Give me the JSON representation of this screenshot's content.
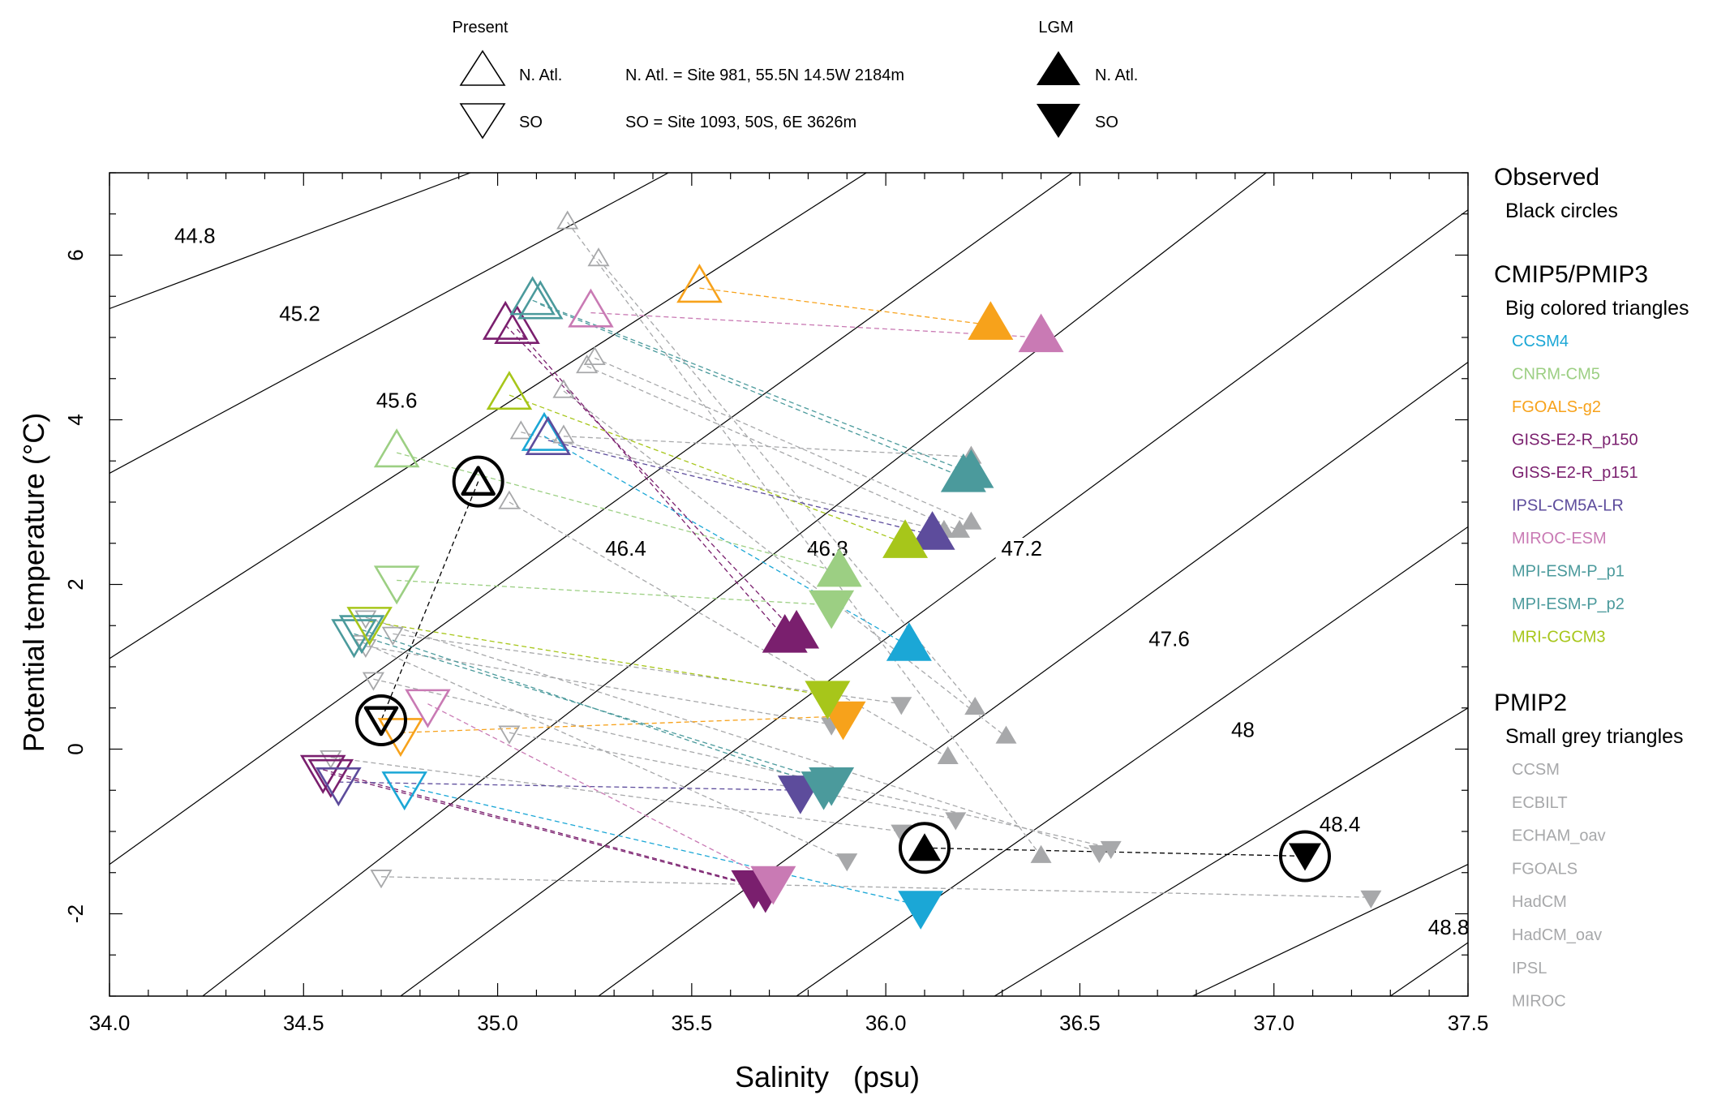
{
  "legend_top": {
    "present_title": "Present",
    "lgm_title": "LGM",
    "natl_label": "N. Atl.",
    "so_label": "SO",
    "natl_site": "N. Atl. = Site 981, 55.5N 14.5W 2184m",
    "so_site": "SO = Site 1093, 50S, 6E 3626m"
  },
  "side_legend": {
    "observed_title": "Observed",
    "observed_desc": "Black circles",
    "cmip_title": "CMIP5/PMIP3",
    "cmip_desc": "Big colored triangles",
    "cmip_models": [
      {
        "name": "CCSM4",
        "color": "#1ba7d6"
      },
      {
        "name": "CNRM-CM5",
        "color": "#9ccf83"
      },
      {
        "name": "FGOALS-g2",
        "color": "#f7a21b"
      },
      {
        "name": "GISS-E2-R_p150",
        "color": "#7a1f6e"
      },
      {
        "name": "GISS-E2-R_p151",
        "color": "#7a1f6e"
      },
      {
        "name": "IPSL-CM5A-LR",
        "color": "#5d4c9c"
      },
      {
        "name": "MIROC-ESM",
        "color": "#c97ab4"
      },
      {
        "name": "MPI-ESM-P_p1",
        "color": "#4b9a9c"
      },
      {
        "name": "MPI-ESM-P_p2",
        "color": "#4b9a9c"
      },
      {
        "name": "MRI-CGCM3",
        "color": "#a7c61a"
      }
    ],
    "pmip2_title": "PMIP2",
    "pmip2_desc": "Small grey triangles",
    "pmip2_models": [
      "CCSM",
      "ECBILT",
      "ECHAM_oav",
      "FGOALS",
      "HadCM",
      "HadCM_oav",
      "IPSL",
      "MIROC"
    ],
    "pmip2_color": "#a7a8aa"
  },
  "chart_data": {
    "type": "scatter",
    "xlabel": "Salinity   (psu)",
    "ylabel": "Potential temperature (°C)",
    "xlim": [
      34.0,
      37.5
    ],
    "ylim": [
      -3,
      7
    ],
    "xticks": [
      "34.0",
      "34.5",
      "35.0",
      "35.5",
      "36.0",
      "36.5",
      "37.0",
      "37.5"
    ],
    "yticks": [
      "-2",
      "0",
      "2",
      "4",
      "6"
    ],
    "isopycnals": [
      {
        "label": "44.8",
        "x0": 34.0,
        "y0": 5.35,
        "x1": 34.93,
        "y1": 7.0
      },
      {
        "label": "45.2",
        "x0": 34.0,
        "y0": 3.35,
        "x1": 35.44,
        "y1": 7.0
      },
      {
        "label": "45.6",
        "x0": 34.0,
        "y0": 1.1,
        "x1": 35.95,
        "y1": 7.0
      },
      {
        "label": "",
        "x0": 34.0,
        "y0": -1.4,
        "x1": 36.48,
        "y1": 7.0
      },
      {
        "label": "46.4",
        "x0": 34.24,
        "y0": -3.0,
        "x1": 36.98,
        "y1": 7.0
      },
      {
        "label": "46.8",
        "x0": 34.75,
        "y0": -3.0,
        "x1": 37.5,
        "y1": 6.55
      },
      {
        "label": "47.2",
        "x0": 35.26,
        "y0": -3.0,
        "x1": 37.5,
        "y1": 4.7
      },
      {
        "label": "47.6",
        "x0": 35.77,
        "y0": -3.0,
        "x1": 37.5,
        "y1": 2.7
      },
      {
        "label": "48",
        "x0": 36.28,
        "y0": -3.0,
        "x1": 37.5,
        "y1": 0.5
      },
      {
        "label": "48.4",
        "x0": 36.79,
        "y0": -3.0,
        "x1": 37.5,
        "y1": -1.4
      },
      {
        "label": "48.8",
        "x0": 37.3,
        "y0": -3.0,
        "x1": 37.5,
        "y1": -2.35
      }
    ],
    "isopycnal_labels": [
      {
        "text": "44.8",
        "x": 34.22,
        "y": 6.15
      },
      {
        "text": "45.2",
        "x": 34.49,
        "y": 5.2
      },
      {
        "text": "45.6",
        "x": 34.74,
        "y": 4.15
      },
      {
        "text": "46.4",
        "x": 35.33,
        "y": 2.35
      },
      {
        "text": "46.8",
        "x": 35.85,
        "y": 2.35
      },
      {
        "text": "47.2",
        "x": 36.35,
        "y": 2.35
      },
      {
        "text": "47.6",
        "x": 36.73,
        "y": 1.25
      },
      {
        "text": "48",
        "x": 36.92,
        "y": 0.15
      },
      {
        "text": "48.4",
        "x": 37.17,
        "y": -1.0
      },
      {
        "text": "48.8",
        "x": 37.45,
        "y": -2.25
      }
    ],
    "observed": [
      {
        "x": 34.95,
        "y": 3.25,
        "kind": "up",
        "period": "present"
      },
      {
        "x": 34.7,
        "y": 0.35,
        "kind": "down",
        "period": "present"
      },
      {
        "x": 36.1,
        "y": -1.2,
        "kind": "up",
        "period": "lgm"
      },
      {
        "x": 37.08,
        "y": -1.3,
        "kind": "down",
        "period": "lgm"
      }
    ],
    "series": [
      {
        "name": "CCSM4",
        "color": "#1ba7d6",
        "present_natl": [
          35.12,
          3.8
        ],
        "present_so": [
          34.76,
          -0.45
        ],
        "lgm_natl": [
          36.06,
          1.25
        ],
        "lgm_so": [
          36.09,
          -1.9
        ]
      },
      {
        "name": "CNRM-CM5",
        "color": "#9ccf83",
        "present_natl": [
          34.74,
          3.6
        ],
        "present_so": [
          34.74,
          2.05
        ],
        "lgm_natl": [
          35.88,
          2.15
        ],
        "lgm_so": [
          35.86,
          1.75
        ]
      },
      {
        "name": "FGOALS-g2",
        "color": "#f7a21b",
        "present_natl": [
          35.52,
          5.6
        ],
        "present_so": [
          34.75,
          0.2
        ],
        "lgm_natl": [
          36.27,
          5.15
        ],
        "lgm_so": [
          35.89,
          0.4
        ]
      },
      {
        "name": "GISS-E2-R_p150",
        "color": "#7a1f6e",
        "present_natl": [
          35.05,
          5.1
        ],
        "present_so": [
          34.57,
          -0.3
        ],
        "lgm_natl": [
          35.74,
          1.35
        ],
        "lgm_so": [
          35.69,
          -1.7
        ]
      },
      {
        "name": "GISS-E2-R_p151",
        "color": "#7a1f6e",
        "present_natl": [
          35.02,
          5.15
        ],
        "present_so": [
          34.55,
          -0.25
        ],
        "lgm_natl": [
          35.77,
          1.4
        ],
        "lgm_so": [
          35.66,
          -1.65
        ]
      },
      {
        "name": "IPSL-CM5A-LR",
        "color": "#5d4c9c",
        "present_natl": [
          35.13,
          3.75
        ],
        "present_so": [
          34.59,
          -0.4
        ],
        "lgm_natl": [
          36.12,
          2.6
        ],
        "lgm_so": [
          35.78,
          -0.5
        ]
      },
      {
        "name": "MIROC-ESM",
        "color": "#c97ab4",
        "present_natl": [
          35.24,
          5.3
        ],
        "present_so": [
          34.82,
          0.55
        ],
        "lgm_natl": [
          36.4,
          5.0
        ],
        "lgm_so": [
          35.71,
          -1.6
        ]
      },
      {
        "name": "MPI-ESM-P_p1",
        "color": "#4b9a9c",
        "present_natl": [
          35.09,
          5.45
        ],
        "present_so": [
          34.65,
          1.45
        ],
        "lgm_natl": [
          36.22,
          3.35
        ],
        "lgm_so": [
          35.84,
          -0.45
        ]
      },
      {
        "name": "MPI-ESM-P_p2",
        "color": "#4b9a9c",
        "present_natl": [
          35.11,
          5.4
        ],
        "present_so": [
          34.63,
          1.4
        ],
        "lgm_natl": [
          36.2,
          3.3
        ],
        "lgm_so": [
          35.86,
          -0.4
        ]
      },
      {
        "name": "MRI-CGCM3",
        "color": "#a7c61a",
        "present_natl": [
          35.03,
          4.3
        ],
        "present_so": [
          34.67,
          1.55
        ],
        "lgm_natl": [
          36.05,
          2.5
        ],
        "lgm_so": [
          35.85,
          0.65
        ]
      }
    ],
    "pmip2": [
      {
        "present_natl": [
          35.18,
          6.4
        ],
        "present_so": [
          34.7,
          -1.55
        ],
        "lgm_natl": [
          36.4,
          -1.3
        ],
        "lgm_so": [
          37.25,
          -1.8
        ]
      },
      {
        "present_natl": [
          35.26,
          5.95
        ],
        "present_so": [
          34.68,
          0.85
        ],
        "lgm_natl": [
          36.23,
          0.5
        ],
        "lgm_so": [
          36.58,
          -1.2
        ]
      },
      {
        "present_natl": [
          35.17,
          4.35
        ],
        "present_so": [
          34.66,
          1.6
        ],
        "lgm_natl": [
          36.31,
          0.15
        ],
        "lgm_so": [
          36.55,
          -1.25
        ]
      },
      {
        "present_natl": [
          35.23,
          4.65
        ],
        "present_so": [
          34.73,
          1.4
        ],
        "lgm_natl": [
          36.19,
          2.65
        ],
        "lgm_so": [
          36.04,
          0.55
        ]
      },
      {
        "present_natl": [
          35.25,
          4.75
        ],
        "present_so": [
          34.66,
          1.25
        ],
        "lgm_natl": [
          36.22,
          2.75
        ],
        "lgm_so": [
          35.86,
          0.3
        ]
      },
      {
        "present_natl": [
          35.17,
          3.8
        ],
        "present_so": [
          34.57,
          -0.1
        ],
        "lgm_natl": [
          36.22,
          3.55
        ],
        "lgm_so": [
          36.04,
          -1.0
        ]
      },
      {
        "present_natl": [
          35.03,
          3.0
        ],
        "present_so": [
          35.03,
          0.2
        ],
        "lgm_natl": [
          36.16,
          -0.1
        ],
        "lgm_so": [
          36.18,
          -0.85
        ]
      },
      {
        "present_natl": [
          35.06,
          3.85
        ],
        "present_so": [
          34.65,
          1.3
        ],
        "lgm_natl": [
          36.15,
          2.65
        ],
        "lgm_so": [
          35.9,
          -1.35
        ]
      }
    ]
  }
}
